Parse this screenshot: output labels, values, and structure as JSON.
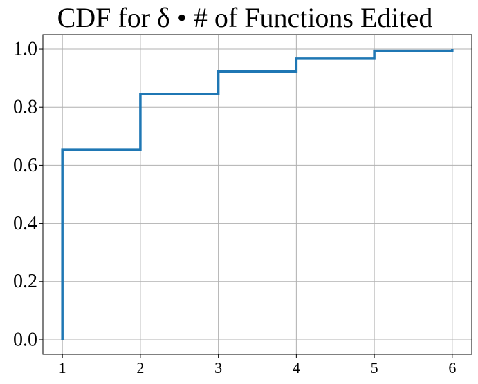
{
  "chart_data": {
    "type": "line",
    "title": "CDF for δ • # of Functions Edited",
    "series": [
      {
        "color": "#1f77b4",
        "x": [
          1,
          1,
          2,
          2,
          3,
          3,
          4,
          4,
          5,
          5,
          6,
          6
        ],
        "values": [
          0,
          0.653,
          0.653,
          0.845,
          0.845,
          0.923,
          0.923,
          0.967,
          0.967,
          0.994,
          0.994,
          1.0
        ]
      }
    ],
    "xlim": [
      0.75,
      6.25
    ],
    "xticks": [
      1,
      2,
      3,
      4,
      5,
      6
    ],
    "ylim": [
      -0.05,
      1.05
    ],
    "yticks": [
      {
        "value": 0,
        "label": "0.0"
      },
      0.2,
      0.4,
      0.6,
      0.8,
      {
        "value": 1,
        "label": "1.0"
      }
    ],
    "grid": true
  }
}
